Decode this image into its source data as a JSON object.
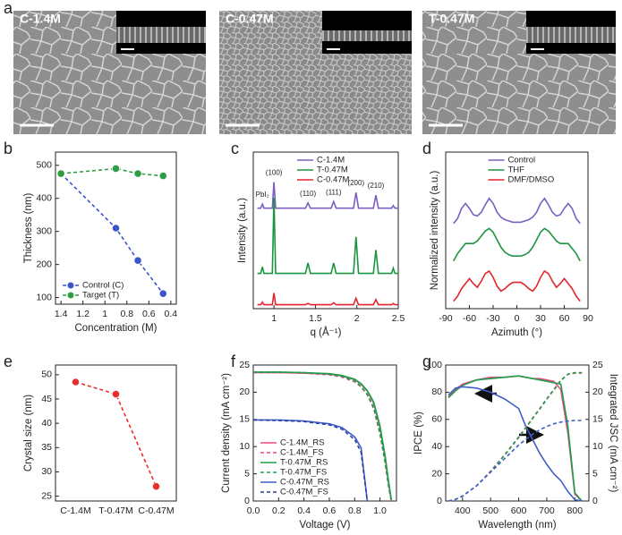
{
  "panel_labels": [
    "a",
    "b",
    "c",
    "d",
    "e",
    "f",
    "g"
  ],
  "images": [
    {
      "label": "C-1.4M"
    },
    {
      "label": "C-0.47M"
    },
    {
      "label": "T-0.47M"
    }
  ],
  "chart_data": [
    {
      "type": "line",
      "xlabel": "Concentration (M)",
      "ylabel": "Thickness (nm)",
      "x": [
        1.4,
        0.9,
        0.7,
        0.47
      ],
      "xlim": [
        1.45,
        0.35
      ],
      "xticks": [
        1.4,
        1.2,
        1,
        0.8,
        0.6,
        0.4
      ],
      "ylim": [
        80,
        540
      ],
      "yticks": [
        100,
        200,
        300,
        400,
        500
      ],
      "markers": true,
      "linestyle": "dashed",
      "legend": "lower left",
      "series": [
        {
          "name": "Control (C)",
          "color": "#3a55c8",
          "values": [
            475,
            310,
            212,
            112
          ]
        },
        {
          "name": "Target (T)",
          "color": "#2e9e44",
          "values": [
            475,
            490,
            475,
            468
          ]
        }
      ]
    },
    {
      "type": "line",
      "xlabel": "q (Å⁻¹)",
      "ylabel": "Intensity (a.u.)",
      "x": [
        0.8,
        0.84,
        0.86,
        0.88,
        0.95,
        0.98,
        1.0,
        1.02,
        1.05,
        1.2,
        1.38,
        1.41,
        1.44,
        1.6,
        1.69,
        1.72,
        1.75,
        1.9,
        1.96,
        1.99,
        2.02,
        2.1,
        2.2,
        2.23,
        2.26,
        2.35,
        2.42,
        2.44,
        2.46,
        2.5
      ],
      "xlim": [
        0.75,
        2.5
      ],
      "xticks": [
        1,
        1.5,
        2,
        2.5
      ],
      "ylim": [
        0,
        120
      ],
      "legend": "upper center",
      "annotations": [
        "PbI₂",
        "(100)",
        "(110)",
        "(111)",
        "(200)",
        "(210)"
      ],
      "series": [
        {
          "name": "C-1.4M",
          "color": "#7b5fc0",
          "values": [
            77,
            77,
            80,
            77,
            77,
            77,
            97,
            77,
            77,
            77,
            77,
            81,
            77,
            77,
            77,
            82,
            77,
            77,
            77,
            89,
            77,
            77,
            77,
            87,
            77,
            77,
            77,
            79,
            77,
            77
          ]
        },
        {
          "name": "T-0.47M",
          "color": "#1a9641",
          "values": [
            27,
            27,
            32,
            27,
            27,
            27,
            85,
            27,
            27,
            27,
            27,
            35,
            27,
            27,
            27,
            35,
            27,
            27,
            27,
            55,
            27,
            27,
            27,
            45,
            27,
            27,
            27,
            31,
            27,
            27
          ]
        },
        {
          "name": "C-0.47M",
          "color": "#e3262d",
          "values": [
            3,
            3,
            5,
            3,
            3,
            3,
            12,
            3,
            3,
            3,
            3,
            4,
            3,
            3,
            3,
            4.5,
            3,
            3,
            3,
            8,
            3,
            3,
            3,
            7,
            3,
            3,
            3,
            4,
            3,
            3
          ]
        }
      ]
    },
    {
      "type": "line",
      "xlabel": "Azimuth (°)",
      "ylabel": "Normalized intensity (a.u.)",
      "x": [
        -80,
        -75,
        -70,
        -65,
        -60,
        -55,
        -50,
        -45,
        -40,
        -35,
        -30,
        -25,
        -20,
        -15,
        -10,
        -5,
        0,
        5,
        10,
        15,
        20,
        25,
        30,
        35,
        40,
        45,
        50,
        55,
        60,
        65,
        70,
        75,
        80
      ],
      "xlim": [
        -90,
        90
      ],
      "xticks": [
        -90,
        -60,
        -30,
        0,
        30,
        60,
        90
      ],
      "ylim": [
        0,
        125
      ],
      "legend": "upper center",
      "series": [
        {
          "name": "Control",
          "color": "#7b5fc0",
          "values": [
            68,
            72,
            80,
            84,
            80,
            75,
            74,
            77,
            83,
            88,
            84,
            77,
            73,
            71,
            70,
            69,
            69,
            69,
            70,
            71,
            73,
            77,
            84,
            88,
            83,
            77,
            74,
            75,
            80,
            84,
            80,
            72,
            68
          ]
        },
        {
          "name": "THF",
          "color": "#1a9641",
          "values": [
            38,
            44,
            48,
            52,
            52,
            52,
            54,
            58,
            62,
            64,
            61,
            55,
            49,
            45,
            43,
            42,
            42,
            42,
            43,
            45,
            49,
            55,
            61,
            64,
            62,
            58,
            54,
            52,
            52,
            52,
            48,
            44,
            38
          ]
        },
        {
          "name": "DMF/DMSO",
          "color": "#e3262d",
          "values": [
            6,
            10,
            16,
            20,
            24,
            20,
            17,
            22,
            28,
            30,
            25,
            18,
            14,
            16,
            19,
            21,
            21,
            21,
            19,
            16,
            14,
            18,
            25,
            30,
            28,
            22,
            17,
            20,
            24,
            20,
            16,
            10,
            6
          ]
        }
      ]
    },
    {
      "type": "line",
      "ylabel": "Crystal size (nm)",
      "categories": [
        "C-1.4M",
        "T-0.47M",
        "C-0.47M"
      ],
      "values": [
        48.5,
        46,
        27
      ],
      "color": "#e8302a",
      "ylim": [
        24,
        52
      ],
      "yticks": [
        25,
        30,
        35,
        40,
        45,
        50
      ],
      "markers": true,
      "linestyle": "dashed"
    },
    {
      "type": "line",
      "xlabel": "Voltage (V)",
      "ylabel": "Current density (mA cm⁻²)",
      "x": [
        0,
        0.2,
        0.4,
        0.6,
        0.7,
        0.8,
        0.85,
        0.9,
        0.95,
        1.0,
        1.04,
        1.07,
        1.09
      ],
      "xlim": [
        0,
        1.13
      ],
      "xticks": [
        {
          "value": 0,
          "label": "0.0"
        },
        0.2,
        0.4,
        0.6,
        0.8,
        {
          "value": 1,
          "label": "1.0"
        }
      ],
      "ylim": [
        0,
        25
      ],
      "yticks": [
        0,
        5,
        10,
        15,
        20,
        25
      ],
      "legend": "lower left",
      "series": [
        {
          "name": "C-1.4M_RS",
          "color": "#e84a8a",
          "linestyle": "solid",
          "values": [
            23.6,
            23.6,
            23.5,
            23.3,
            23.0,
            22.3,
            21.5,
            20.2,
            18.0,
            13.5,
            8.0,
            3.0,
            0
          ]
        },
        {
          "name": "C-1.4M_FS",
          "color": "#e84a8a",
          "linestyle": "dashed",
          "values": [
            23.6,
            23.6,
            23.5,
            23.2,
            22.8,
            21.9,
            21.0,
            19.5,
            17.0,
            12.3,
            7.0,
            2.3,
            0
          ]
        },
        {
          "name": "T-0.47M_RS",
          "color": "#1e9e4a",
          "linestyle": "solid",
          "values": [
            23.7,
            23.7,
            23.6,
            23.4,
            23.1,
            22.4,
            21.6,
            20.3,
            18.2,
            13.8,
            8.3,
            3.2,
            0.2
          ]
        },
        {
          "name": "T-0.47M_FS",
          "color": "#1e9e4a",
          "linestyle": "dashed",
          "values": [
            23.7,
            23.7,
            23.6,
            23.3,
            22.9,
            22.0,
            21.1,
            19.6,
            17.2,
            12.5,
            7.2,
            2.5,
            0.1
          ]
        },
        {
          "name": "C-0.47M_RS",
          "color": "#3f5fc8",
          "linestyle": "solid",
          "values": [
            14.9,
            14.9,
            14.7,
            14.2,
            13.5,
            11.8,
            9.8,
            0,
            null,
            null,
            null,
            null,
            null
          ]
        },
        {
          "name": "C-0.47M_FS",
          "color": "#2a3f9a",
          "linestyle": "dashed",
          "values": [
            14.9,
            14.8,
            14.6,
            14.0,
            13.2,
            11.3,
            9.0,
            0,
            null,
            null,
            null,
            null,
            null
          ]
        }
      ]
    },
    {
      "type": "line",
      "xlabel": "Wavelength (nm)",
      "ylabel": "IPCE (%)",
      "y2label": "Integrated JSC (mA cm⁻²)",
      "x": [
        350,
        375,
        400,
        450,
        500,
        550,
        600,
        625,
        650,
        675,
        700,
        725,
        750,
        775,
        800,
        825
      ],
      "xlim": [
        340,
        850
      ],
      "xticks": [
        400,
        500,
        600,
        700,
        800
      ],
      "ylim": [
        0,
        100
      ],
      "yticks": [
        0,
        20,
        40,
        60,
        80,
        100
      ],
      "y2lim": [
        0,
        25
      ],
      "y2ticks": [
        0,
        5,
        10,
        15,
        20,
        25
      ],
      "series": [
        {
          "color": "#e84a8a",
          "linestyle": "solid",
          "values": [
            77,
            82,
            86,
            89,
            91,
            91,
            92,
            91,
            90,
            90,
            89,
            88,
            82,
            50,
            5,
            0
          ]
        },
        {
          "color": "#1e9e4a",
          "linestyle": "solid",
          "values": [
            76,
            81,
            85,
            89,
            90,
            91,
            92,
            91,
            90,
            89,
            88,
            87,
            86,
            55,
            6,
            0
          ]
        },
        {
          "color": "#3f5fc8",
          "linestyle": "solid",
          "values": [
            78,
            83,
            84,
            83,
            80,
            75,
            68,
            55,
            45,
            35,
            27,
            20,
            15,
            7,
            1,
            0
          ]
        },
        {
          "color": "#e84a8a",
          "linestyle": "dashed",
          "axis": "y2",
          "values": [
            0,
            0.3,
            0.9,
            2.8,
            5.5,
            8.5,
            11.8,
            13.5,
            15.3,
            17.0,
            18.8,
            20.5,
            22.2,
            23.3,
            23.5,
            23.5
          ]
        },
        {
          "color": "#1e9e4a",
          "linestyle": "dashed",
          "axis": "y2",
          "values": [
            0,
            0.3,
            0.9,
            2.8,
            5.4,
            8.4,
            11.7,
            13.4,
            15.2,
            16.9,
            18.7,
            20.4,
            22.1,
            23.3,
            23.6,
            23.6
          ]
        },
        {
          "color": "#3f5fc8",
          "linestyle": "dashed",
          "axis": "y2",
          "values": [
            0,
            0.3,
            0.9,
            2.8,
            5.3,
            7.8,
            10.3,
            11.3,
            12.3,
            13.1,
            13.7,
            14.2,
            14.5,
            14.7,
            14.8,
            14.8
          ]
        }
      ]
    }
  ]
}
